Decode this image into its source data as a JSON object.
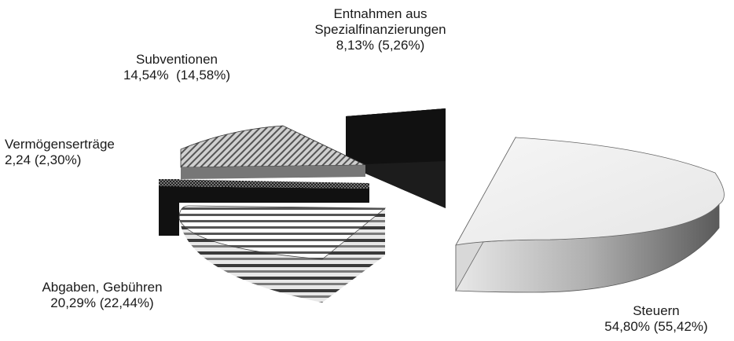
{
  "chart_data": {
    "type": "pie",
    "style": "3d-exploded",
    "title": "",
    "legend": "none",
    "slices": [
      {
        "label": "Steuern",
        "value": 54.8,
        "value_text": "54,80%",
        "prev_text": "(55,42%)",
        "pattern": "gradient-light"
      },
      {
        "label": "Abgaben, Gebühren",
        "value": 20.29,
        "value_text": "20,29%",
        "prev_text": "(22,44%)",
        "pattern": "horizontal-stripes"
      },
      {
        "label": "Vermögenserträge",
        "value": 2.24,
        "value_text": "2,24",
        "prev_text": "(2,30%)",
        "pattern": "dark-checker"
      },
      {
        "label": "Subventionen",
        "value": 14.54,
        "value_text": "14,54%",
        "prev_text": "(14,58%)",
        "pattern": "diagonal-hatch"
      },
      {
        "label": "Entnahmen aus Spezialfinanzierungen",
        "label_line1": "Entnahmen  aus",
        "label_line2": "Spezialfinanzierungen",
        "value": 8.13,
        "value_text": "8,13%",
        "prev_text": "(5,26%)",
        "pattern": "black"
      }
    ]
  }
}
